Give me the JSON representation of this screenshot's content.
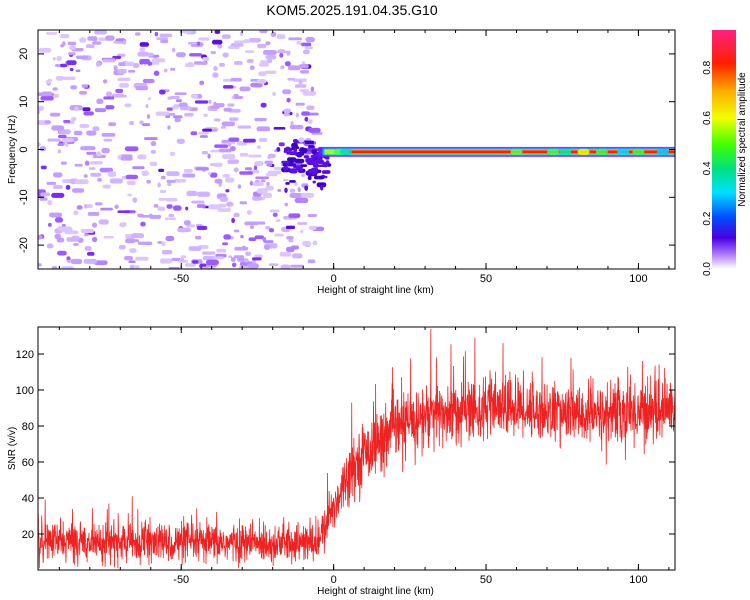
{
  "title": "KOM5.2025.191.04.35.G10",
  "chart_data": [
    {
      "type": "heatmap",
      "xlabel": "Height of straight line (km)",
      "ylabel": "Frequency (Hz)",
      "xlim": [
        -97,
        112
      ],
      "ylim": [
        -25,
        25
      ],
      "xticks": [
        -50,
        0,
        50,
        100
      ],
      "yticks": [
        -20,
        -10,
        0,
        10,
        20
      ],
      "colorbar": {
        "label": "Normalized spectral amplitude",
        "range": [
          0.0,
          0.95
        ],
        "ticks": [
          0.0,
          0.2,
          0.4,
          0.6,
          0.8
        ]
      },
      "description_points": {
        "noise_region_x": [
          -97,
          -5
        ],
        "signal_band": {
          "x_start": -5,
          "x_end": 112,
          "frequency": -0.5,
          "amplitude": 0.95
        }
      }
    },
    {
      "type": "line",
      "xlabel": "Height of straight line (km)",
      "ylabel": "SNR (v/v)",
      "xlim": [
        -97,
        112
      ],
      "ylim": [
        0,
        135
      ],
      "xticks": [
        -50,
        0,
        50,
        100
      ],
      "yticks": [
        20,
        40,
        60,
        80,
        100,
        120
      ],
      "series": [
        {
          "x": [
            -97,
            -80,
            -60,
            -40,
            -20,
            -5,
            0,
            5,
            10,
            20,
            30,
            40,
            50,
            60,
            70,
            80,
            90,
            100,
            112
          ],
          "mean": [
            16,
            16,
            15,
            15,
            15,
            15,
            35,
            55,
            65,
            78,
            85,
            88,
            90,
            90,
            88,
            86,
            86,
            88,
            90
          ],
          "spread": [
            10,
            10,
            10,
            10,
            10,
            10,
            12,
            14,
            15,
            17,
            18,
            17,
            16,
            15,
            15,
            15,
            16,
            17,
            17
          ],
          "color": "#ee2222"
        }
      ]
    }
  ]
}
